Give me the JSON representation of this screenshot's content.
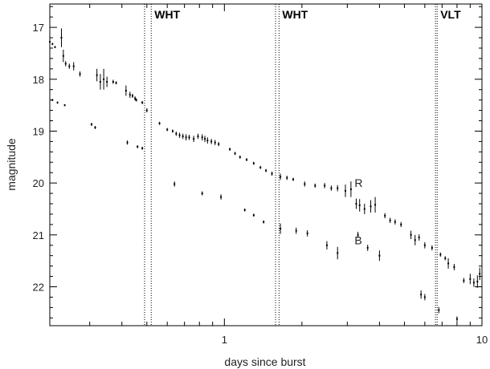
{
  "chart_data": {
    "type": "scatter",
    "title": "",
    "xlabel": "days since burst",
    "ylabel": "magnitude",
    "x_scale": "log",
    "xlim": [
      0.21,
      10
    ],
    "ylim": [
      22.75,
      16.55
    ],
    "y_inverted": true,
    "x_ticks": [
      {
        "value": 1,
        "label": "1"
      },
      {
        "value": 10,
        "label": "10"
      }
    ],
    "y_ticks": [
      {
        "value": 17,
        "label": "17"
      },
      {
        "value": 18,
        "label": "18"
      },
      {
        "value": 19,
        "label": "19"
      },
      {
        "value": 20,
        "label": "20"
      },
      {
        "value": 21,
        "label": "21"
      },
      {
        "value": 22,
        "label": "22"
      }
    ],
    "grid": false,
    "vertical_markers": [
      {
        "label": "WHT",
        "x": [
          0.49,
          0.52
        ]
      },
      {
        "label": "WHT",
        "x": [
          1.58,
          1.63
        ]
      },
      {
        "label": "VLT",
        "x": [
          6.6,
          6.7
        ]
      }
    ],
    "series": [
      {
        "name": "R",
        "label_x": 3.2,
        "label_y": 20.0,
        "points": [
          [
            0.21,
            17.28,
            0.02
          ],
          [
            0.215,
            17.32,
            0.02
          ],
          [
            0.22,
            17.38,
            0.02
          ],
          [
            0.233,
            17.2,
            0.18
          ],
          [
            0.237,
            17.55,
            0.12
          ],
          [
            0.242,
            17.7,
            0.05
          ],
          [
            0.25,
            17.75,
            0.05
          ],
          [
            0.26,
            17.75,
            0.08
          ],
          [
            0.275,
            17.9,
            0.05
          ],
          [
            0.32,
            17.92,
            0.12
          ],
          [
            0.33,
            18.05,
            0.15
          ],
          [
            0.34,
            18.0,
            0.2
          ],
          [
            0.35,
            18.05,
            0.1
          ],
          [
            0.37,
            18.05,
            0.04
          ],
          [
            0.38,
            18.07,
            0.03
          ],
          [
            0.415,
            18.22,
            0.1
          ],
          [
            0.43,
            18.3,
            0.06
          ],
          [
            0.44,
            18.32,
            0.04
          ],
          [
            0.45,
            18.37,
            0.04
          ],
          [
            0.455,
            18.4,
            0.03
          ],
          [
            0.48,
            18.45,
            0.03
          ],
          [
            0.5,
            18.6,
            0.04
          ],
          [
            0.56,
            18.85,
            0.03
          ],
          [
            0.6,
            18.97,
            0.03
          ],
          [
            0.63,
            19.0,
            0.03
          ],
          [
            0.65,
            19.05,
            0.04
          ],
          [
            0.67,
            19.08,
            0.05
          ],
          [
            0.69,
            19.1,
            0.05
          ],
          [
            0.71,
            19.12,
            0.06
          ],
          [
            0.73,
            19.12,
            0.05
          ],
          [
            0.76,
            19.15,
            0.06
          ],
          [
            0.79,
            19.1,
            0.05
          ],
          [
            0.82,
            19.12,
            0.06
          ],
          [
            0.84,
            19.15,
            0.06
          ],
          [
            0.86,
            19.18,
            0.06
          ],
          [
            0.89,
            19.2,
            0.05
          ],
          [
            0.92,
            19.22,
            0.05
          ],
          [
            0.95,
            19.25,
            0.04
          ],
          [
            1.05,
            19.35,
            0.03
          ],
          [
            1.1,
            19.43,
            0.03
          ],
          [
            1.15,
            19.5,
            0.03
          ],
          [
            1.22,
            19.55,
            0.03
          ],
          [
            1.3,
            19.62,
            0.03
          ],
          [
            1.38,
            19.7,
            0.03
          ],
          [
            1.45,
            19.76,
            0.03
          ],
          [
            1.53,
            19.82,
            0.04
          ],
          [
            1.65,
            19.88,
            0.06
          ],
          [
            1.75,
            19.9,
            0.04
          ],
          [
            1.85,
            19.93,
            0.03
          ],
          [
            2.05,
            20.02,
            0.05
          ],
          [
            2.25,
            20.05,
            0.04
          ],
          [
            2.45,
            20.05,
            0.05
          ],
          [
            2.6,
            20.1,
            0.05
          ],
          [
            2.75,
            20.1,
            0.06
          ],
          [
            2.95,
            20.15,
            0.12
          ],
          [
            3.1,
            20.12,
            0.15
          ],
          [
            3.25,
            20.4,
            0.1
          ],
          [
            3.35,
            20.43,
            0.12
          ],
          [
            3.5,
            20.5,
            0.1
          ],
          [
            3.7,
            20.45,
            0.12
          ],
          [
            3.85,
            20.42,
            0.15
          ],
          [
            4.2,
            20.63,
            0.05
          ],
          [
            4.4,
            20.72,
            0.05
          ],
          [
            4.6,
            20.75,
            0.05
          ],
          [
            4.85,
            20.8,
            0.05
          ],
          [
            5.3,
            21.0,
            0.08
          ],
          [
            5.5,
            21.1,
            0.1
          ],
          [
            5.7,
            21.05,
            0.06
          ],
          [
            6.0,
            21.2,
            0.06
          ],
          [
            6.4,
            21.25,
            0.05
          ],
          [
            6.9,
            21.38,
            0.04
          ],
          [
            7.2,
            21.45,
            0.04
          ],
          [
            7.4,
            21.55,
            0.1
          ],
          [
            7.8,
            21.62,
            0.06
          ],
          [
            8.5,
            21.88,
            0.05
          ],
          [
            9.0,
            21.85,
            0.1
          ],
          [
            9.3,
            21.92,
            0.08
          ],
          [
            9.6,
            21.9,
            0.12
          ],
          [
            9.8,
            21.75,
            0.12
          ]
        ]
      },
      {
        "name": "B",
        "label_x": 3.2,
        "label_y": 21.1,
        "points": [
          [
            0.215,
            18.4,
            0.02
          ],
          [
            0.225,
            18.45,
            0.02
          ],
          [
            0.24,
            18.5,
            0.02
          ],
          [
            0.305,
            18.87,
            0.03
          ],
          [
            0.315,
            18.93,
            0.03
          ],
          [
            0.42,
            19.22,
            0.04
          ],
          [
            0.46,
            19.3,
            0.03
          ],
          [
            0.48,
            19.33,
            0.03
          ],
          [
            0.64,
            20.02,
            0.05
          ],
          [
            0.82,
            20.2,
            0.04
          ],
          [
            0.97,
            20.27,
            0.05
          ],
          [
            1.2,
            20.52,
            0.03
          ],
          [
            1.3,
            20.62,
            0.03
          ],
          [
            1.42,
            20.75,
            0.03
          ],
          [
            1.65,
            20.88,
            0.1
          ],
          [
            1.9,
            20.92,
            0.06
          ],
          [
            2.1,
            20.97,
            0.06
          ],
          [
            2.5,
            21.2,
            0.08
          ],
          [
            2.75,
            21.35,
            0.12
          ],
          [
            3.3,
            21.0,
            0.06
          ],
          [
            3.6,
            21.25,
            0.06
          ],
          [
            4.0,
            21.4,
            0.1
          ],
          [
            5.8,
            22.15,
            0.08
          ],
          [
            6.0,
            22.2,
            0.06
          ],
          [
            6.8,
            22.45,
            0.06
          ],
          [
            8.0,
            22.62,
            0.05
          ]
        ]
      }
    ]
  }
}
